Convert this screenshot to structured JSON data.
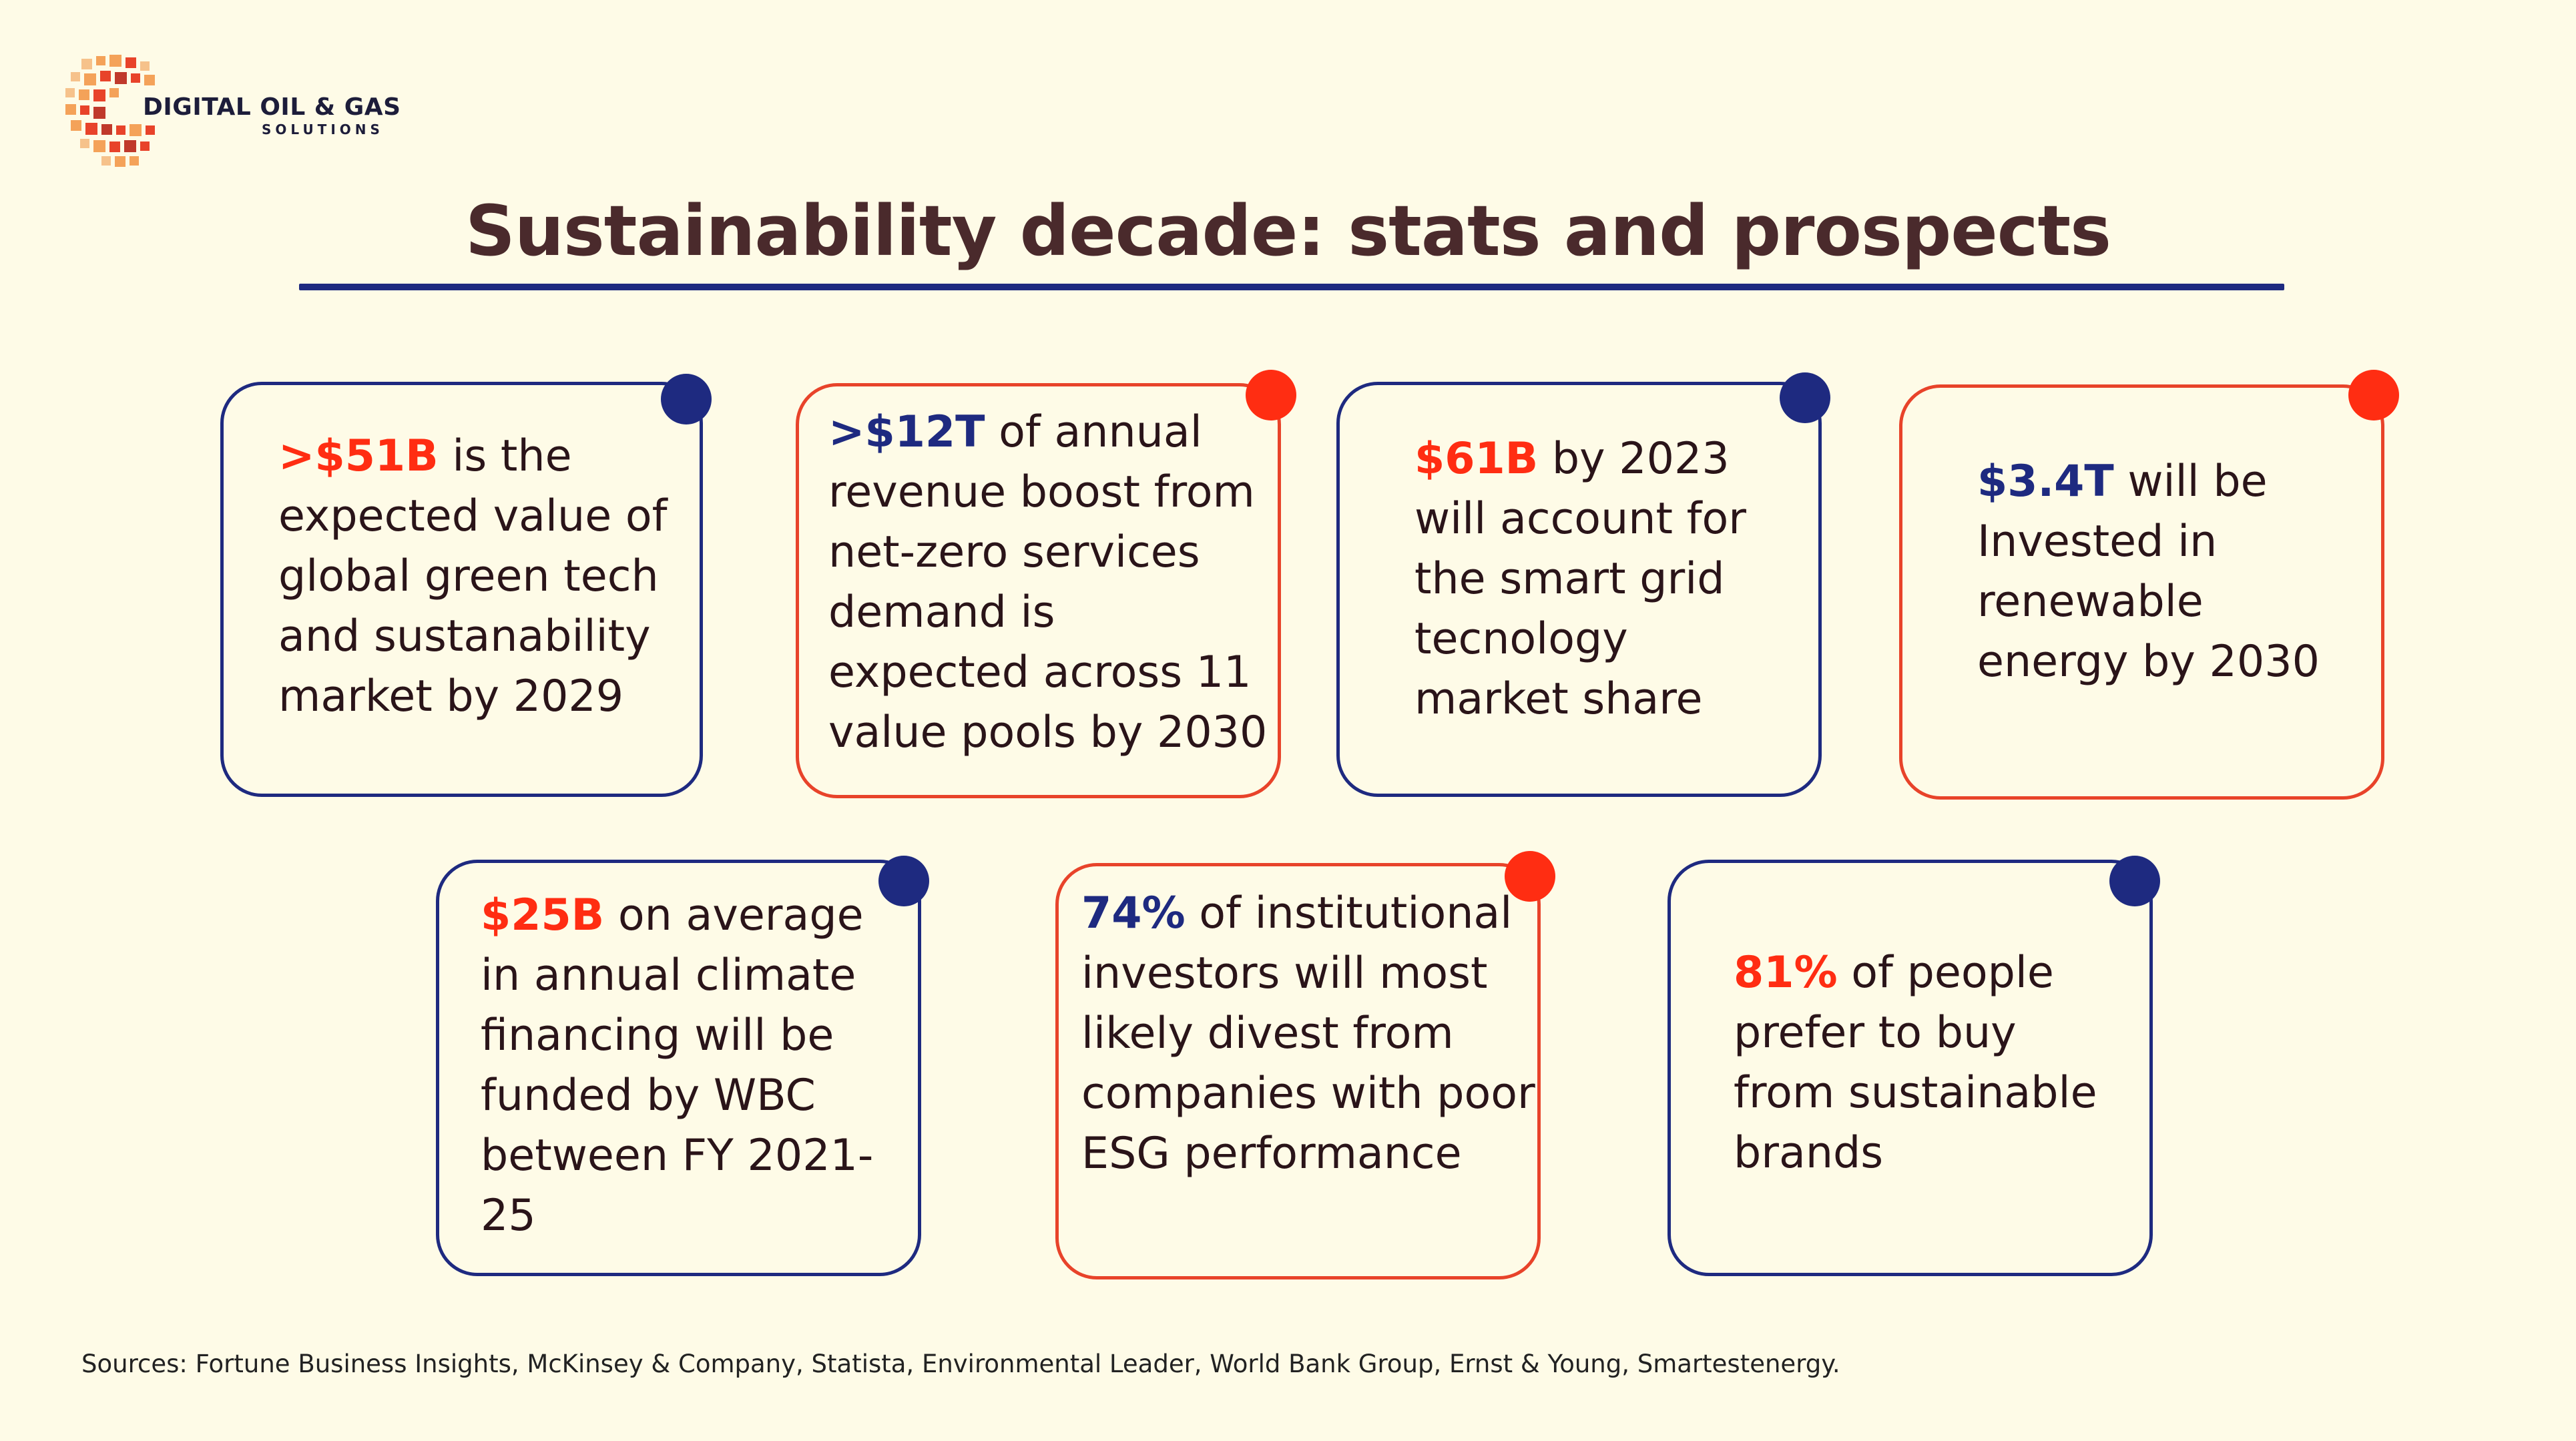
{
  "logo": {
    "name": "DIGITAL OIL & GAS",
    "subtitle": "SOLUTIONS",
    "colors": [
      "#F4A259",
      "#E8432A",
      "#C0392B",
      "#F6C28B"
    ]
  },
  "title": "Sustainability decade: stats and prospects",
  "colors": {
    "background": "#FEFBE7",
    "title": "#4A2A2C",
    "navy": "#1E2A80",
    "red": "#FF2D12"
  },
  "stats": [
    {
      "value": ">$51B",
      "text": " is the expected value of global green tech and sustanability market by 2029",
      "value_color": "red",
      "border": "navy"
    },
    {
      "value": ">$12T",
      "text": " of annual revenue boost from net-zero services demand is expected across 11 value pools by 2030",
      "value_color": "navy",
      "border": "red"
    },
    {
      "value": "$61B",
      "text": " by 2023 will account for the smart grid tecnology market share",
      "value_color": "red",
      "border": "navy"
    },
    {
      "value": "$3.4T",
      "text": " will be Invested in renewable energy by 2030",
      "value_color": "navy",
      "border": "red"
    },
    {
      "value": "$25B",
      "text": " on average in annual climate financing will be funded by WBC between FY 2021-25",
      "value_color": "red",
      "border": "navy"
    },
    {
      "value": "74%",
      "text": " of institutional investors will most likely divest from companies with poor ESG performance",
      "value_color": "navy",
      "border": "red"
    },
    {
      "value": "81%",
      "text": " of people prefer to buy from sustainable brands",
      "value_color": "red",
      "border": "navy"
    }
  ],
  "sources": "Sources: Fortune Business Insights, McKinsey & Company, Statista, Environmental Leader, World Bank Group, Ernst & Young, Smartestenergy."
}
